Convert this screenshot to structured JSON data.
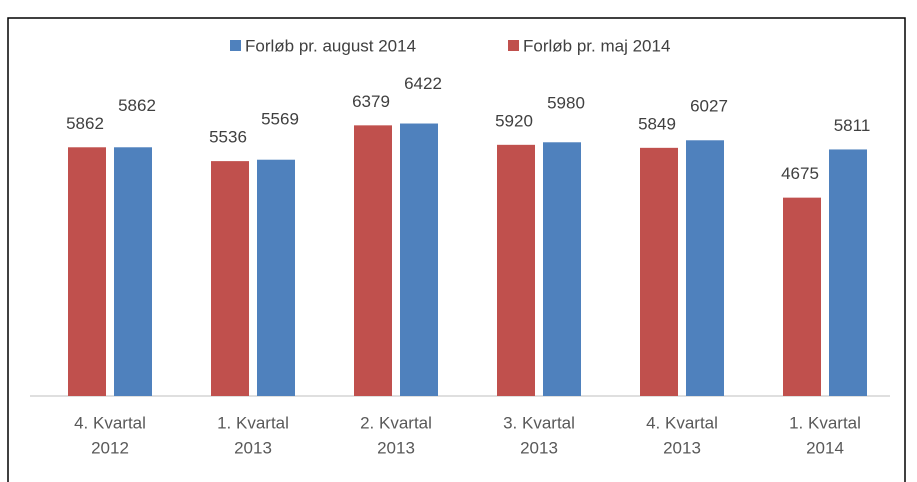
{
  "chart_data": {
    "type": "bar",
    "categories": [
      [
        "4. Kvartal",
        "2012"
      ],
      [
        "1. Kvartal",
        "2013"
      ],
      [
        "2. Kvartal",
        "2013"
      ],
      [
        "3. Kvartal",
        "2013"
      ],
      [
        "4. Kvartal",
        "2013"
      ],
      [
        "1. Kvartal",
        "2014"
      ]
    ],
    "series": [
      {
        "name": "Forløb pr. august 2014",
        "color": "#4f81bd",
        "values": [
          5862,
          5569,
          6422,
          5980,
          6027,
          5811
        ]
      },
      {
        "name": "Forløb pr. maj 2014",
        "color": "#c0504d",
        "values": [
          5862,
          5536,
          6379,
          5920,
          5849,
          4675
        ]
      }
    ],
    "ylim": [
      0,
      7000
    ],
    "legend": "top",
    "grid": false
  }
}
